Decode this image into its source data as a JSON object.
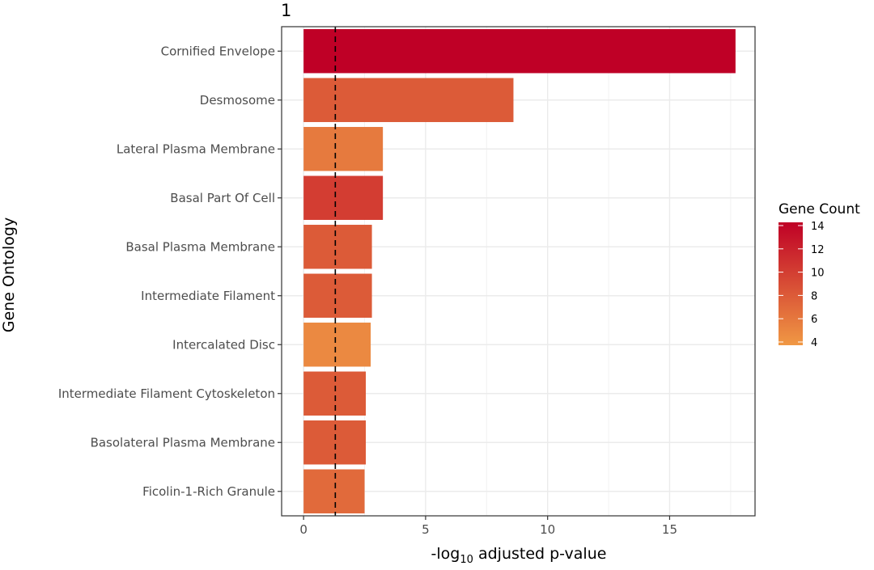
{
  "chart_data": {
    "type": "bar",
    "orientation": "horizontal",
    "title": "1",
    "xlabel_prefix": "-log",
    "xlabel_sub": "10",
    "xlabel_suffix": " adjusted p-value",
    "ylabel": "Gene Ontology",
    "xlim": [
      -0.9,
      18.5
    ],
    "xticks": [
      0,
      5,
      10,
      15
    ],
    "threshold_line": 1.3,
    "grid": true,
    "categories": [
      "Cornified Envelope",
      "Desmosome",
      "Lateral Plasma Membrane",
      "Basal Part Of Cell",
      "Basal Plasma Membrane",
      "Intermediate Filament",
      "Intercalated Disc",
      "Intermediate Filament Cytoskeleton",
      "Basolateral Plasma Membrane",
      "Ficolin-1-Rich Granule"
    ],
    "values": [
      17.7,
      8.6,
      3.25,
      3.25,
      2.8,
      2.8,
      2.75,
      2.55,
      2.55,
      2.5
    ],
    "gene_count": [
      14,
      8,
      6,
      10,
      8,
      8,
      5,
      8,
      8,
      7
    ],
    "legend": {
      "title": "Gene Count",
      "placement": "right",
      "min": 4,
      "max": 14,
      "ticks": [
        14,
        12,
        10,
        8,
        6,
        4
      ],
      "color_low": "#f09844",
      "color_high": "#bf0026"
    }
  }
}
